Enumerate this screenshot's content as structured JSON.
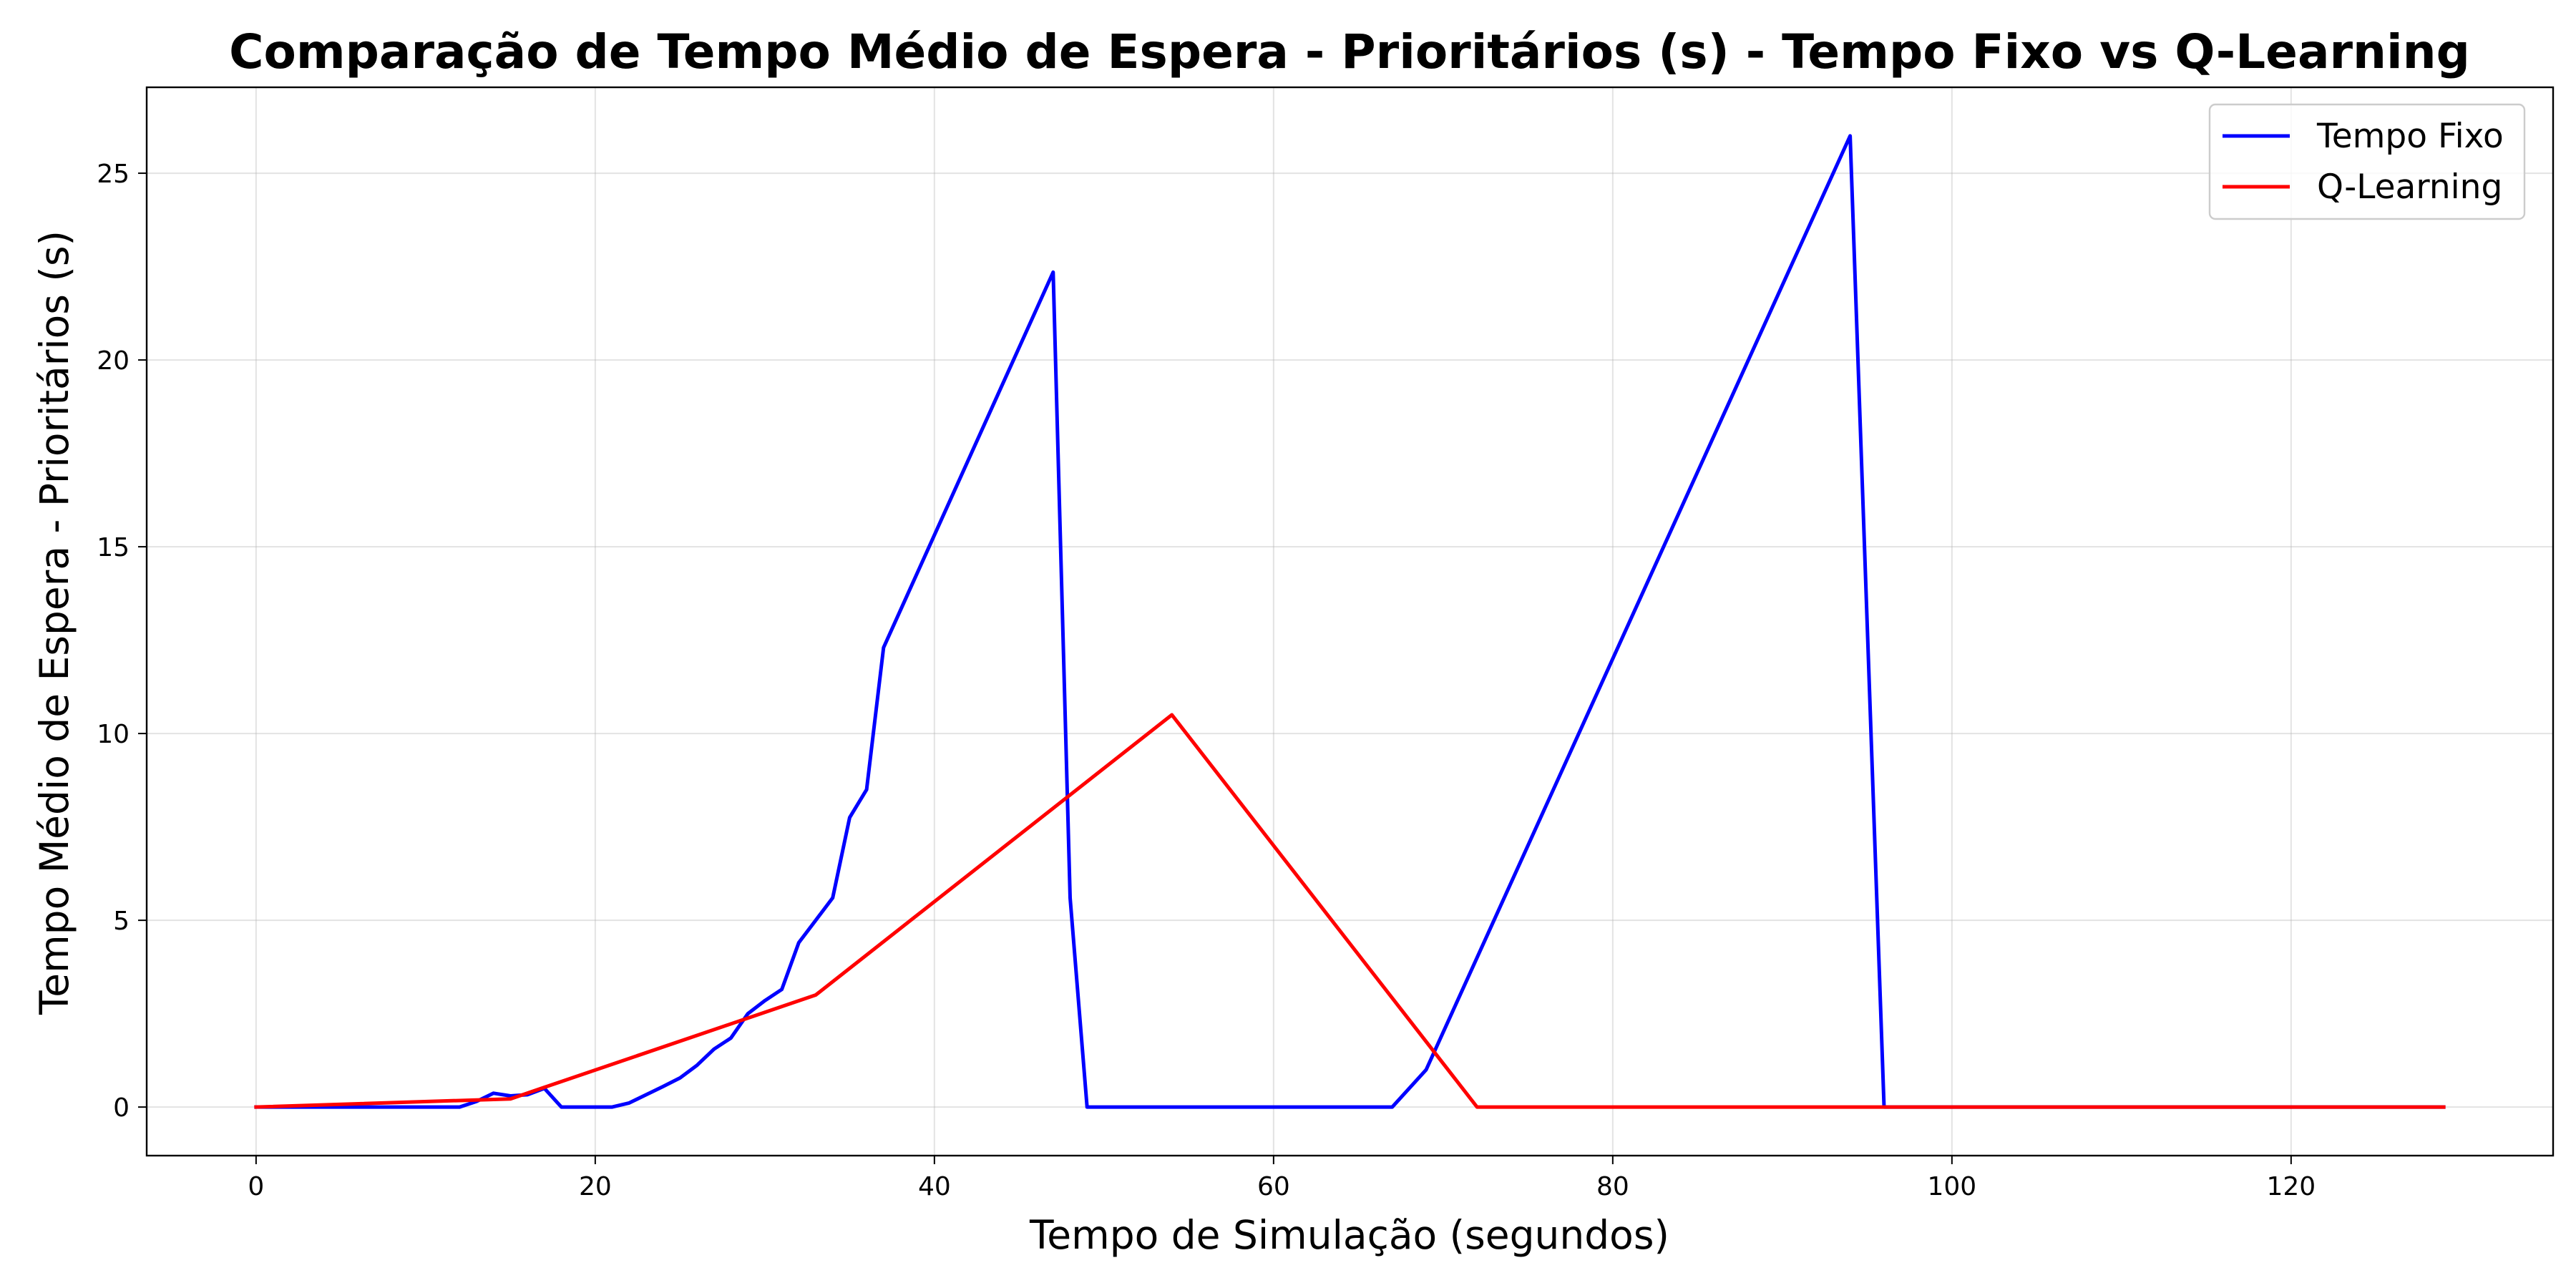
{
  "chart_data": {
    "type": "line",
    "title": "Comparação de Tempo Médio de Espera - Prioritários (s) - Tempo Fixo vs Q-Learning",
    "xlabel": "Tempo de Simulação (segundos)",
    "ylabel": "Tempo Médio de Espera - Prioritários (s)",
    "xlim": [
      -6.45,
      135.45
    ],
    "ylim": [
      -1.3,
      27.3
    ],
    "xticks": [
      0,
      20,
      40,
      60,
      80,
      100,
      120
    ],
    "yticks": [
      0,
      5,
      10,
      15,
      20,
      25
    ],
    "grid": true,
    "legend_position": "top-right",
    "series": [
      {
        "name": "Tempo Fixo",
        "color": "#0000ff",
        "x": [
          0,
          12,
          13,
          14,
          15,
          16,
          17,
          18,
          19,
          20,
          21,
          22,
          23,
          24,
          25,
          26,
          27,
          28,
          29,
          30,
          31,
          32,
          33,
          34,
          35,
          36,
          37,
          47,
          48,
          49,
          67,
          69,
          94,
          96,
          129
        ],
        "y": [
          0,
          0,
          0.15,
          0.37,
          0.3,
          0.33,
          0.5,
          0,
          0,
          0,
          0,
          0.11,
          0.33,
          0.55,
          0.78,
          1.12,
          1.55,
          1.85,
          2.5,
          2.85,
          3.15,
          4.4,
          5.0,
          5.6,
          7.75,
          8.5,
          12.3,
          22.35,
          5.6,
          0,
          0,
          1.0,
          26.0,
          0,
          0
        ]
      },
      {
        "name": "Q-Learning",
        "color": "#ff0000",
        "x": [
          0,
          15,
          33,
          54,
          72,
          129
        ],
        "y": [
          0,
          0.22,
          3.0,
          10.5,
          0,
          0
        ]
      }
    ]
  }
}
